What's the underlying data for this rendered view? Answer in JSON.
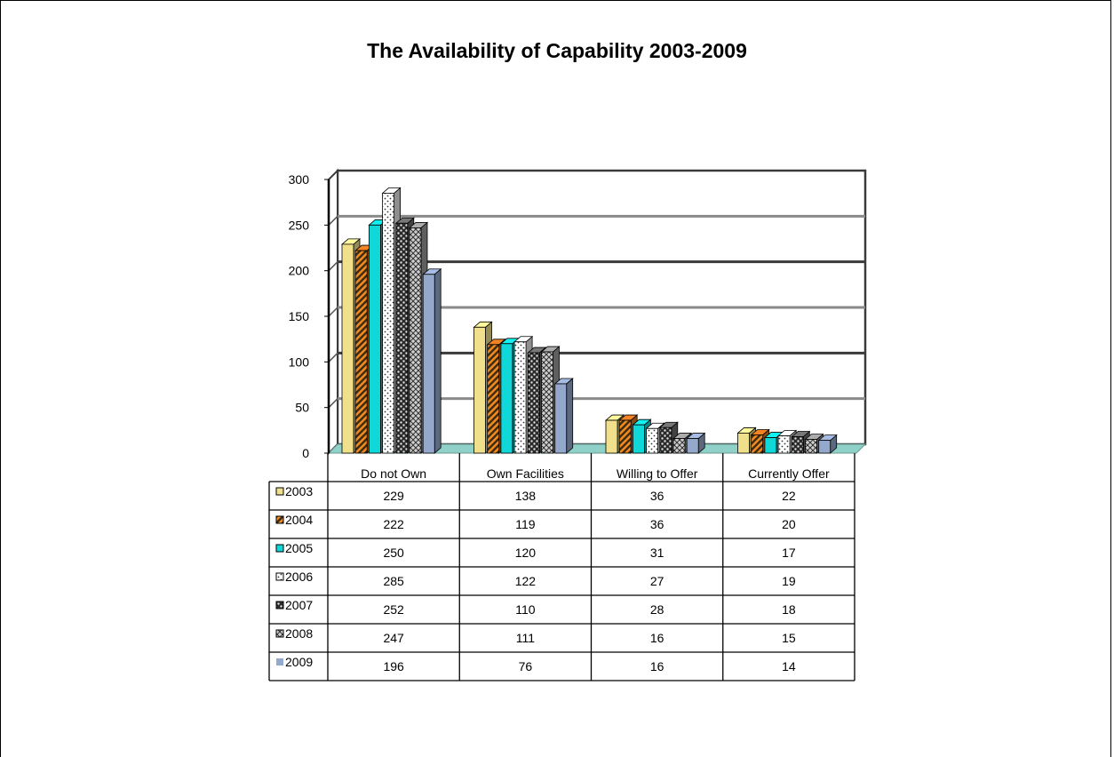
{
  "chart_data": {
    "type": "bar",
    "title": "The Availability  of Capability 2003-2009",
    "categories": [
      "Do not Own",
      "Own Facilities",
      "Willing to Offer",
      "Currently Offer"
    ],
    "series": [
      {
        "name": "2003",
        "values": [
          229,
          138,
          36,
          22
        ],
        "color": "#f0e08c"
      },
      {
        "name": "2004",
        "values": [
          222,
          119,
          36,
          20
        ],
        "color": "#d9751f"
      },
      {
        "name": "2005",
        "values": [
          250,
          120,
          31,
          17
        ],
        "color": "#10d8d8"
      },
      {
        "name": "2006",
        "values": [
          285,
          122,
          27,
          19
        ],
        "color": "#e6e6e6"
      },
      {
        "name": "2007",
        "values": [
          252,
          110,
          28,
          18
        ],
        "color": "#6a6a6a"
      },
      {
        "name": "2008",
        "values": [
          247,
          111,
          16,
          15
        ],
        "color": "#9a9a9a"
      },
      {
        "name": "2009",
        "values": [
          196,
          76,
          16,
          14
        ],
        "color": "#94a8cc"
      }
    ],
    "yticks": [
      0,
      50,
      100,
      150,
      200,
      250,
      300
    ],
    "ylim": [
      0,
      300
    ],
    "grid": true,
    "legend": "data-table",
    "floor_color": "#8fd0c8"
  }
}
